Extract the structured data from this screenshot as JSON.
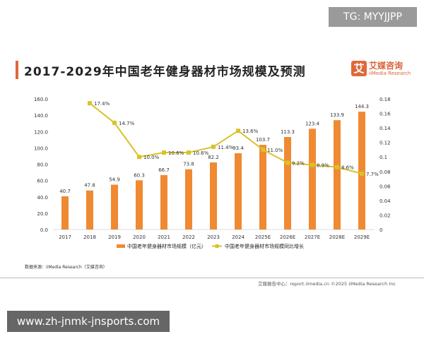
{
  "watermark_top": "TG: MYYJJPP",
  "title": "2017-2029年中国老年健身器材市场规模及预测",
  "logo": {
    "icon_char": "艾",
    "cn": "艾媒咨询",
    "en": "iiMedia Research"
  },
  "source": "数据来源：iiMedia Research（艾媒咨询）",
  "footer": "艾媒报告中心：report.iimedia.cn  ©2025  iiMedia Research Inc",
  "watermark_bottom": "www.zh-jnmk-jnsports.com",
  "colors": {
    "bar": "#ef8a32",
    "line": "#d9c22b",
    "accent": "#e0683a"
  },
  "chart_data": {
    "type": "bar+line",
    "categories": [
      "2017",
      "2018",
      "2019",
      "2020",
      "2021",
      "2022",
      "2023",
      "2024",
      "2025E",
      "2026E",
      "2027E",
      "2028E",
      "2029E"
    ],
    "series": [
      {
        "name": "中国老年健身器材市场规模（亿元）",
        "type": "bar",
        "axis": "left",
        "values": [
          40.7,
          47.8,
          54.9,
          60.3,
          66.7,
          73.8,
          82.2,
          93.4,
          103.7,
          113.3,
          123.4,
          133.9,
          144.3
        ],
        "labels": [
          "40.7",
          "47.8",
          "54.9",
          "60.3",
          "66.7",
          "73.8",
          "82.2",
          "93.4",
          "103.7",
          "113.3",
          "123.4",
          "133.9",
          "144.3"
        ]
      },
      {
        "name": "中国老年健身器材市场规模同比增长",
        "type": "line",
        "axis": "right",
        "values": [
          null,
          0.174,
          0.147,
          0.1,
          0.106,
          0.106,
          0.114,
          0.136,
          0.11,
          0.092,
          0.089,
          0.086,
          0.077
        ],
        "labels": [
          null,
          "17.4%",
          "14.7%",
          "10.0%",
          "10.6%",
          "10.6%",
          "11.4%",
          "13.6%",
          "11.0%",
          "9.2%",
          "8.9%",
          "8.6%",
          "7.7%"
        ]
      }
    ],
    "left_axis": {
      "ylim": [
        0,
        160
      ],
      "ticks": [
        "0.0",
        "20.0",
        "40.0",
        "60.0",
        "80.0",
        "100.0",
        "120.0",
        "140.0",
        "160.0"
      ]
    },
    "right_axis": {
      "ylim": [
        0,
        0.18
      ],
      "ticks": [
        "0",
        "0.02",
        "0.04",
        "0.06",
        "0.08",
        "0.1",
        "0.12",
        "0.14",
        "0.16",
        "0.18"
      ]
    },
    "grid": false,
    "legend": "bottom"
  }
}
